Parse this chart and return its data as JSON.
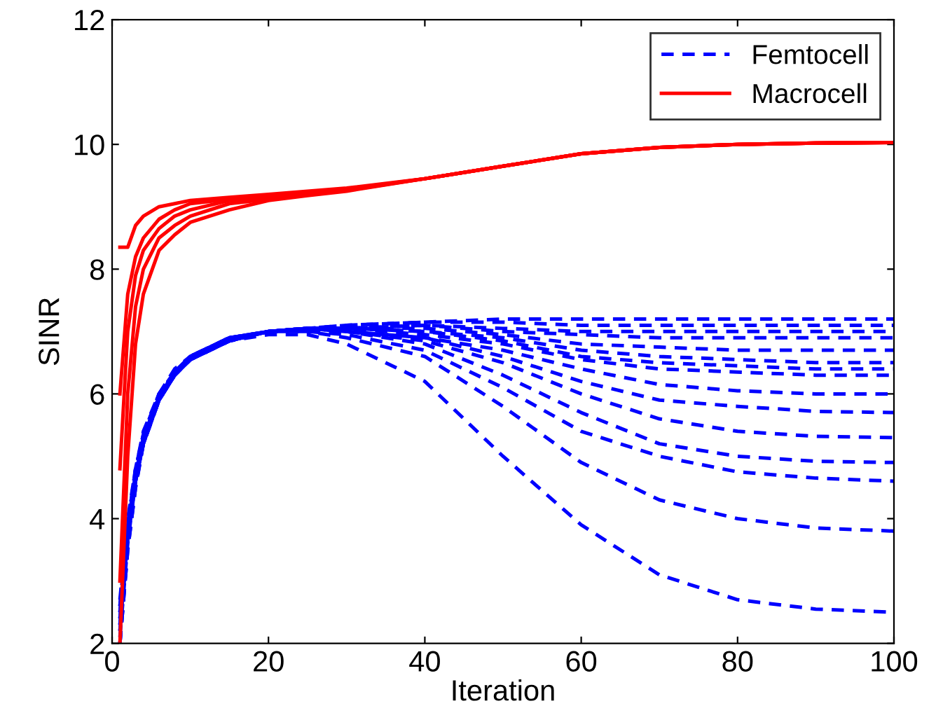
{
  "chart_data": {
    "type": "line",
    "xlabel": "Iteration",
    "ylabel": "SINR",
    "xlim": [
      0,
      100
    ],
    "xticks": [
      0,
      20,
      40,
      60,
      80,
      100
    ],
    "ylim": [
      2,
      12
    ],
    "yticks": [
      2,
      4,
      6,
      8,
      10,
      12
    ],
    "grid": false,
    "legend": "top right",
    "marker": "none",
    "x": [
      1,
      2,
      3,
      4,
      6,
      8,
      10,
      15,
      20,
      25,
      30,
      40,
      50,
      60,
      70,
      80,
      90,
      100
    ],
    "series": [
      {
        "name": "Femtocell",
        "color": "#0000ff",
        "line_style": "dashed",
        "values": [
          2.0,
          3.6,
          4.6,
          5.2,
          5.9,
          6.3,
          6.55,
          6.85,
          6.95,
          6.95,
          6.8,
          6.2,
          5.0,
          3.9,
          3.1,
          2.7,
          2.55,
          2.5
        ]
      },
      {
        "color": "#0000ff",
        "line_style": "dashed",
        "values": [
          2.2,
          3.7,
          4.6,
          5.2,
          5.9,
          6.3,
          6.55,
          6.85,
          7.0,
          7.0,
          6.9,
          6.6,
          5.8,
          4.9,
          4.3,
          4.0,
          3.85,
          3.8
        ]
      },
      {
        "color": "#0000ff",
        "line_style": "dashed",
        "values": [
          2.4,
          3.8,
          4.7,
          5.3,
          5.95,
          6.35,
          6.6,
          6.85,
          7.0,
          7.0,
          6.95,
          6.7,
          6.1,
          5.4,
          5.0,
          4.75,
          4.65,
          4.6
        ]
      },
      {
        "color": "#0000ff",
        "line_style": "dashed",
        "values": [
          2.6,
          3.9,
          4.8,
          5.35,
          6.0,
          6.35,
          6.6,
          6.9,
          7.0,
          7.05,
          7.0,
          6.8,
          6.3,
          5.7,
          5.2,
          5.0,
          4.92,
          4.9
        ]
      },
      {
        "color": "#0000ff",
        "line_style": "dashed",
        "values": [
          2.0,
          3.5,
          4.5,
          5.2,
          5.9,
          6.3,
          6.55,
          6.85,
          7.0,
          7.05,
          7.0,
          6.85,
          6.5,
          6.0,
          5.6,
          5.4,
          5.32,
          5.3
        ]
      },
      {
        "color": "#0000ff",
        "line_style": "dashed",
        "values": [
          2.3,
          3.7,
          4.6,
          5.25,
          5.9,
          6.3,
          6.55,
          6.85,
          7.0,
          7.05,
          7.0,
          6.9,
          6.6,
          6.2,
          5.9,
          5.8,
          5.72,
          5.7
        ]
      },
      {
        "color": "#0000ff",
        "line_style": "dashed",
        "values": [
          2.5,
          3.8,
          4.7,
          5.3,
          5.95,
          6.35,
          6.6,
          6.9,
          7.0,
          7.05,
          7.0,
          6.9,
          6.7,
          6.4,
          6.15,
          6.05,
          6.0,
          6.0
        ]
      },
      {
        "color": "#0000ff",
        "line_style": "dashed",
        "values": [
          2.1,
          3.6,
          4.6,
          5.2,
          5.9,
          6.3,
          6.55,
          6.85,
          7.0,
          7.05,
          7.05,
          6.95,
          6.8,
          6.55,
          6.4,
          6.35,
          6.3,
          6.3
        ]
      },
      {
        "color": "#0000ff",
        "line_style": "dashed",
        "values": [
          2.4,
          3.8,
          4.7,
          5.3,
          5.95,
          6.35,
          6.6,
          6.9,
          7.0,
          7.05,
          7.05,
          7.0,
          6.85,
          6.6,
          6.5,
          6.45,
          6.4,
          6.4
        ]
      },
      {
        "color": "#0000ff",
        "line_style": "dashed",
        "values": [
          2.7,
          4.0,
          4.8,
          5.4,
          6.0,
          6.4,
          6.6,
          6.9,
          7.0,
          7.05,
          7.05,
          7.0,
          6.9,
          6.7,
          6.6,
          6.55,
          6.5,
          6.5
        ]
      },
      {
        "color": "#0000ff",
        "line_style": "dashed",
        "values": [
          2.2,
          3.7,
          4.6,
          5.25,
          5.9,
          6.3,
          6.55,
          6.85,
          7.0,
          7.05,
          7.05,
          7.05,
          6.95,
          6.8,
          6.75,
          6.7,
          6.7,
          6.7
        ]
      },
      {
        "color": "#0000ff",
        "line_style": "dashed",
        "values": [
          2.5,
          3.9,
          4.7,
          5.3,
          5.95,
          6.35,
          6.6,
          6.9,
          7.0,
          7.05,
          7.05,
          7.1,
          7.0,
          6.95,
          6.9,
          6.9,
          6.9,
          6.9
        ]
      },
      {
        "color": "#0000ff",
        "line_style": "dashed",
        "values": [
          2.0,
          3.5,
          4.5,
          5.2,
          5.9,
          6.3,
          6.55,
          6.85,
          7.0,
          7.05,
          7.05,
          7.1,
          7.05,
          7.0,
          7.0,
          7.0,
          7.0,
          7.0
        ]
      },
      {
        "color": "#0000ff",
        "line_style": "dashed",
        "values": [
          2.3,
          3.7,
          4.6,
          5.25,
          5.9,
          6.3,
          6.55,
          6.85,
          7.0,
          7.05,
          7.1,
          7.15,
          7.15,
          7.1,
          7.1,
          7.1,
          7.1,
          7.1
        ]
      },
      {
        "color": "#0000ff",
        "line_style": "dashed",
        "values": [
          2.6,
          3.9,
          4.8,
          5.35,
          6.0,
          6.35,
          6.6,
          6.9,
          7.0,
          7.05,
          7.1,
          7.15,
          7.2,
          7.2,
          7.2,
          7.2,
          7.2,
          7.2
        ]
      },
      {
        "name": "Macrocell",
        "color": "#ff0000",
        "line_style": "solid",
        "values": [
          8.35,
          8.35,
          8.7,
          8.85,
          9.0,
          9.05,
          9.1,
          9.15,
          9.2,
          9.25,
          9.3,
          9.45,
          9.65,
          9.85,
          9.95,
          10.0,
          10.02,
          10.03
        ]
      },
      {
        "color": "#ff0000",
        "line_style": "solid",
        "values": [
          6.0,
          7.6,
          8.2,
          8.5,
          8.8,
          8.95,
          9.05,
          9.12,
          9.18,
          9.23,
          9.28,
          9.45,
          9.65,
          9.85,
          9.95,
          10.0,
          10.02,
          10.03
        ]
      },
      {
        "color": "#ff0000",
        "line_style": "solid",
        "values": [
          4.8,
          7.0,
          7.9,
          8.3,
          8.65,
          8.85,
          8.95,
          9.1,
          9.15,
          9.2,
          9.27,
          9.45,
          9.65,
          9.85,
          9.95,
          10.0,
          10.02,
          10.03
        ]
      },
      {
        "color": "#ff0000",
        "line_style": "solid",
        "values": [
          3.0,
          6.0,
          7.4,
          8.0,
          8.5,
          8.7,
          8.85,
          9.05,
          9.12,
          9.2,
          9.26,
          9.45,
          9.65,
          9.85,
          9.95,
          10.0,
          10.02,
          10.03
        ]
      },
      {
        "color": "#ff0000",
        "line_style": "solid",
        "values": [
          2.0,
          5.0,
          6.8,
          7.6,
          8.3,
          8.55,
          8.75,
          8.95,
          9.1,
          9.18,
          9.25,
          9.45,
          9.65,
          9.85,
          9.95,
          10.0,
          10.02,
          10.03
        ]
      }
    ]
  }
}
